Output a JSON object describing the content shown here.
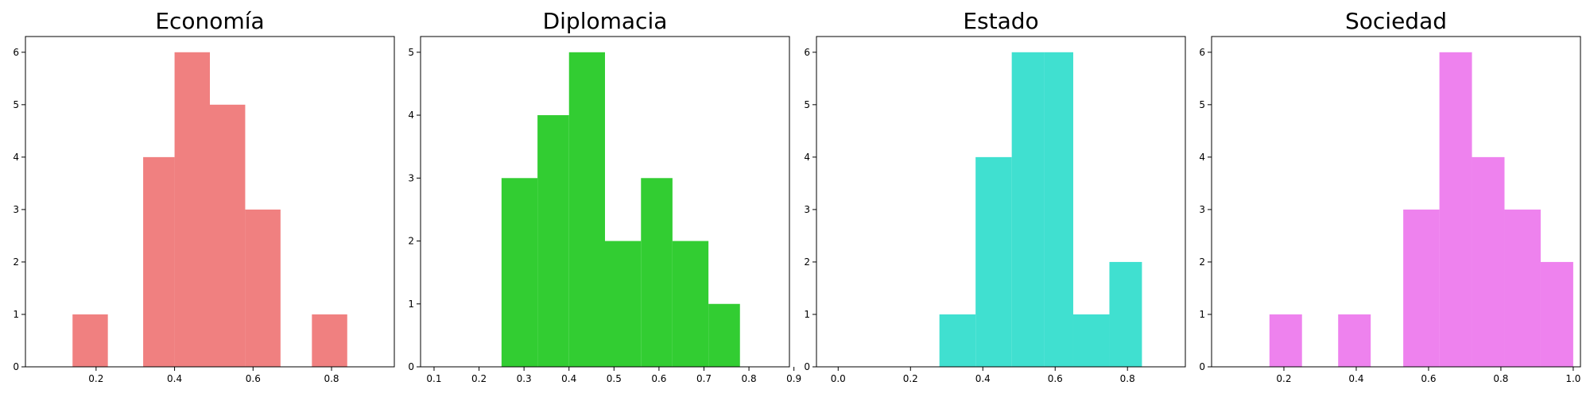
{
  "chart_data": [
    {
      "type": "bar",
      "title": "Economía",
      "color": "#f08080",
      "xlim": [
        0.02,
        0.96
      ],
      "ylim": [
        0,
        6.3
      ],
      "xticks": [
        0.2,
        0.4,
        0.6,
        0.8
      ],
      "yticks": [
        0,
        1,
        2,
        3,
        4,
        5,
        6
      ],
      "bins": [
        {
          "start": 0.14,
          "end": 0.23,
          "count": 1
        },
        {
          "start": 0.23,
          "end": 0.32,
          "count": 0
        },
        {
          "start": 0.32,
          "end": 0.4,
          "count": 4
        },
        {
          "start": 0.4,
          "end": 0.49,
          "count": 6
        },
        {
          "start": 0.49,
          "end": 0.58,
          "count": 5
        },
        {
          "start": 0.58,
          "end": 0.67,
          "count": 3
        },
        {
          "start": 0.67,
          "end": 0.75,
          "count": 0
        },
        {
          "start": 0.75,
          "end": 0.84,
          "count": 1
        }
      ]
    },
    {
      "type": "bar",
      "title": "Diplomacia",
      "color": "#32cd32",
      "xlim": [
        0.07,
        0.89
      ],
      "ylim": [
        0,
        5.25
      ],
      "xticks": [
        0.1,
        0.2,
        0.3,
        0.4,
        0.5,
        0.6,
        0.7,
        0.8,
        0.9
      ],
      "yticks": [
        0,
        1,
        2,
        3,
        4,
        5
      ],
      "bins": [
        {
          "start": 0.25,
          "end": 0.33,
          "count": 3
        },
        {
          "start": 0.33,
          "end": 0.4,
          "count": 4
        },
        {
          "start": 0.4,
          "end": 0.48,
          "count": 5
        },
        {
          "start": 0.48,
          "end": 0.56,
          "count": 2
        },
        {
          "start": 0.56,
          "end": 0.63,
          "count": 3
        },
        {
          "start": 0.63,
          "end": 0.71,
          "count": 2
        },
        {
          "start": 0.71,
          "end": 0.78,
          "count": 1
        }
      ]
    },
    {
      "type": "bar",
      "title": "Estado",
      "color": "#40e0d0",
      "xlim": [
        -0.06,
        0.96
      ],
      "ylim": [
        0,
        6.3
      ],
      "xticks": [
        0.0,
        0.2,
        0.4,
        0.6,
        0.8
      ],
      "yticks": [
        0,
        1,
        2,
        3,
        4,
        5,
        6
      ],
      "bins": [
        {
          "start": 0.28,
          "end": 0.38,
          "count": 1
        },
        {
          "start": 0.38,
          "end": 0.48,
          "count": 4
        },
        {
          "start": 0.48,
          "end": 0.57,
          "count": 6
        },
        {
          "start": 0.57,
          "end": 0.65,
          "count": 6
        },
        {
          "start": 0.65,
          "end": 0.75,
          "count": 1
        },
        {
          "start": 0.75,
          "end": 0.84,
          "count": 2
        }
      ]
    },
    {
      "type": "bar",
      "title": "Sociedad",
      "color": "#ee82ee",
      "xlim": [
        0.0,
        1.02
      ],
      "ylim": [
        0,
        6.3
      ],
      "xticks": [
        0.2,
        0.4,
        0.6,
        0.8,
        1.0
      ],
      "yticks": [
        0,
        1,
        2,
        3,
        4,
        5,
        6
      ],
      "bins": [
        {
          "start": 0.16,
          "end": 0.25,
          "count": 1
        },
        {
          "start": 0.25,
          "end": 0.35,
          "count": 0
        },
        {
          "start": 0.35,
          "end": 0.44,
          "count": 1
        },
        {
          "start": 0.44,
          "end": 0.53,
          "count": 0
        },
        {
          "start": 0.53,
          "end": 0.63,
          "count": 3
        },
        {
          "start": 0.63,
          "end": 0.72,
          "count": 6
        },
        {
          "start": 0.72,
          "end": 0.81,
          "count": 4
        },
        {
          "start": 0.81,
          "end": 0.91,
          "count": 3
        },
        {
          "start": 0.91,
          "end": 1.0,
          "count": 2
        }
      ]
    }
  ]
}
